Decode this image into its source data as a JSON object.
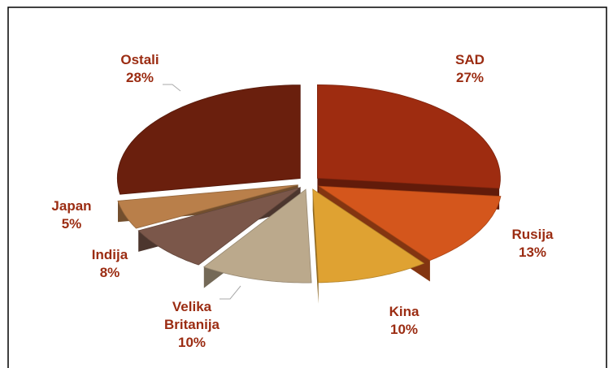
{
  "chart_data": {
    "type": "pie3d",
    "categories": [
      "SAD",
      "Rusija",
      "Kina",
      "Velika Britanija",
      "Indija",
      "Japan",
      "Ostali"
    ],
    "values": [
      27,
      13,
      10,
      10,
      8,
      5,
      28
    ],
    "value_labels": [
      "27%",
      "13%",
      "10%",
      "10%",
      "8%",
      "5%",
      "28%"
    ],
    "colors": [
      "#9e2c10",
      "#d4561c",
      "#dfa232",
      "#bba98c",
      "#7b574a",
      "#b97f4a",
      "#6a1f0d"
    ]
  }
}
